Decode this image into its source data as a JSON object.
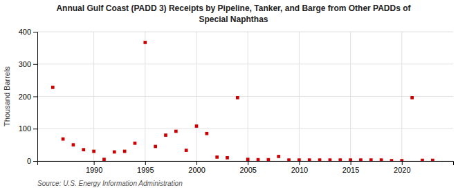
{
  "chart_data": {
    "type": "scatter",
    "title": "Annual Gulf Coast (PADD 3) Receipts by Pipeline, Tanker, and Barge from Other PADDs of",
    "subtitle": "Special Naphthas",
    "ylabel": "Thousand Barrels",
    "annotations": [
      "Source: U.S. Energy Information Administration"
    ],
    "x": [
      1986,
      1987,
      1988,
      1989,
      1990,
      1991,
      1992,
      1993,
      1994,
      1995,
      1996,
      1997,
      1998,
      1999,
      2000,
      2001,
      2002,
      2003,
      2004,
      2005,
      2006,
      2007,
      2008,
      2009,
      2010,
      2011,
      2012,
      2013,
      2014,
      2015,
      2016,
      2017,
      2018,
      2019,
      2020,
      2021,
      2022,
      2023
    ],
    "values": [
      228,
      68,
      50,
      35,
      30,
      5,
      28,
      30,
      55,
      367,
      45,
      80,
      92,
      33,
      108,
      85,
      12,
      10,
      196,
      5,
      4,
      4,
      14,
      3,
      3,
      3,
      3,
      3,
      3,
      3,
      3,
      3,
      3,
      1,
      1,
      196,
      2,
      2
    ],
    "color": "#cc0000",
    "marker": "square",
    "xlim": [
      1984.5,
      2025
    ],
    "ylim": [
      0,
      400
    ],
    "xticks": [
      1990,
      1995,
      2000,
      2005,
      2010,
      2015,
      2020
    ],
    "yticks": [
      0,
      100,
      200,
      300,
      400
    ],
    "grid": true
  }
}
